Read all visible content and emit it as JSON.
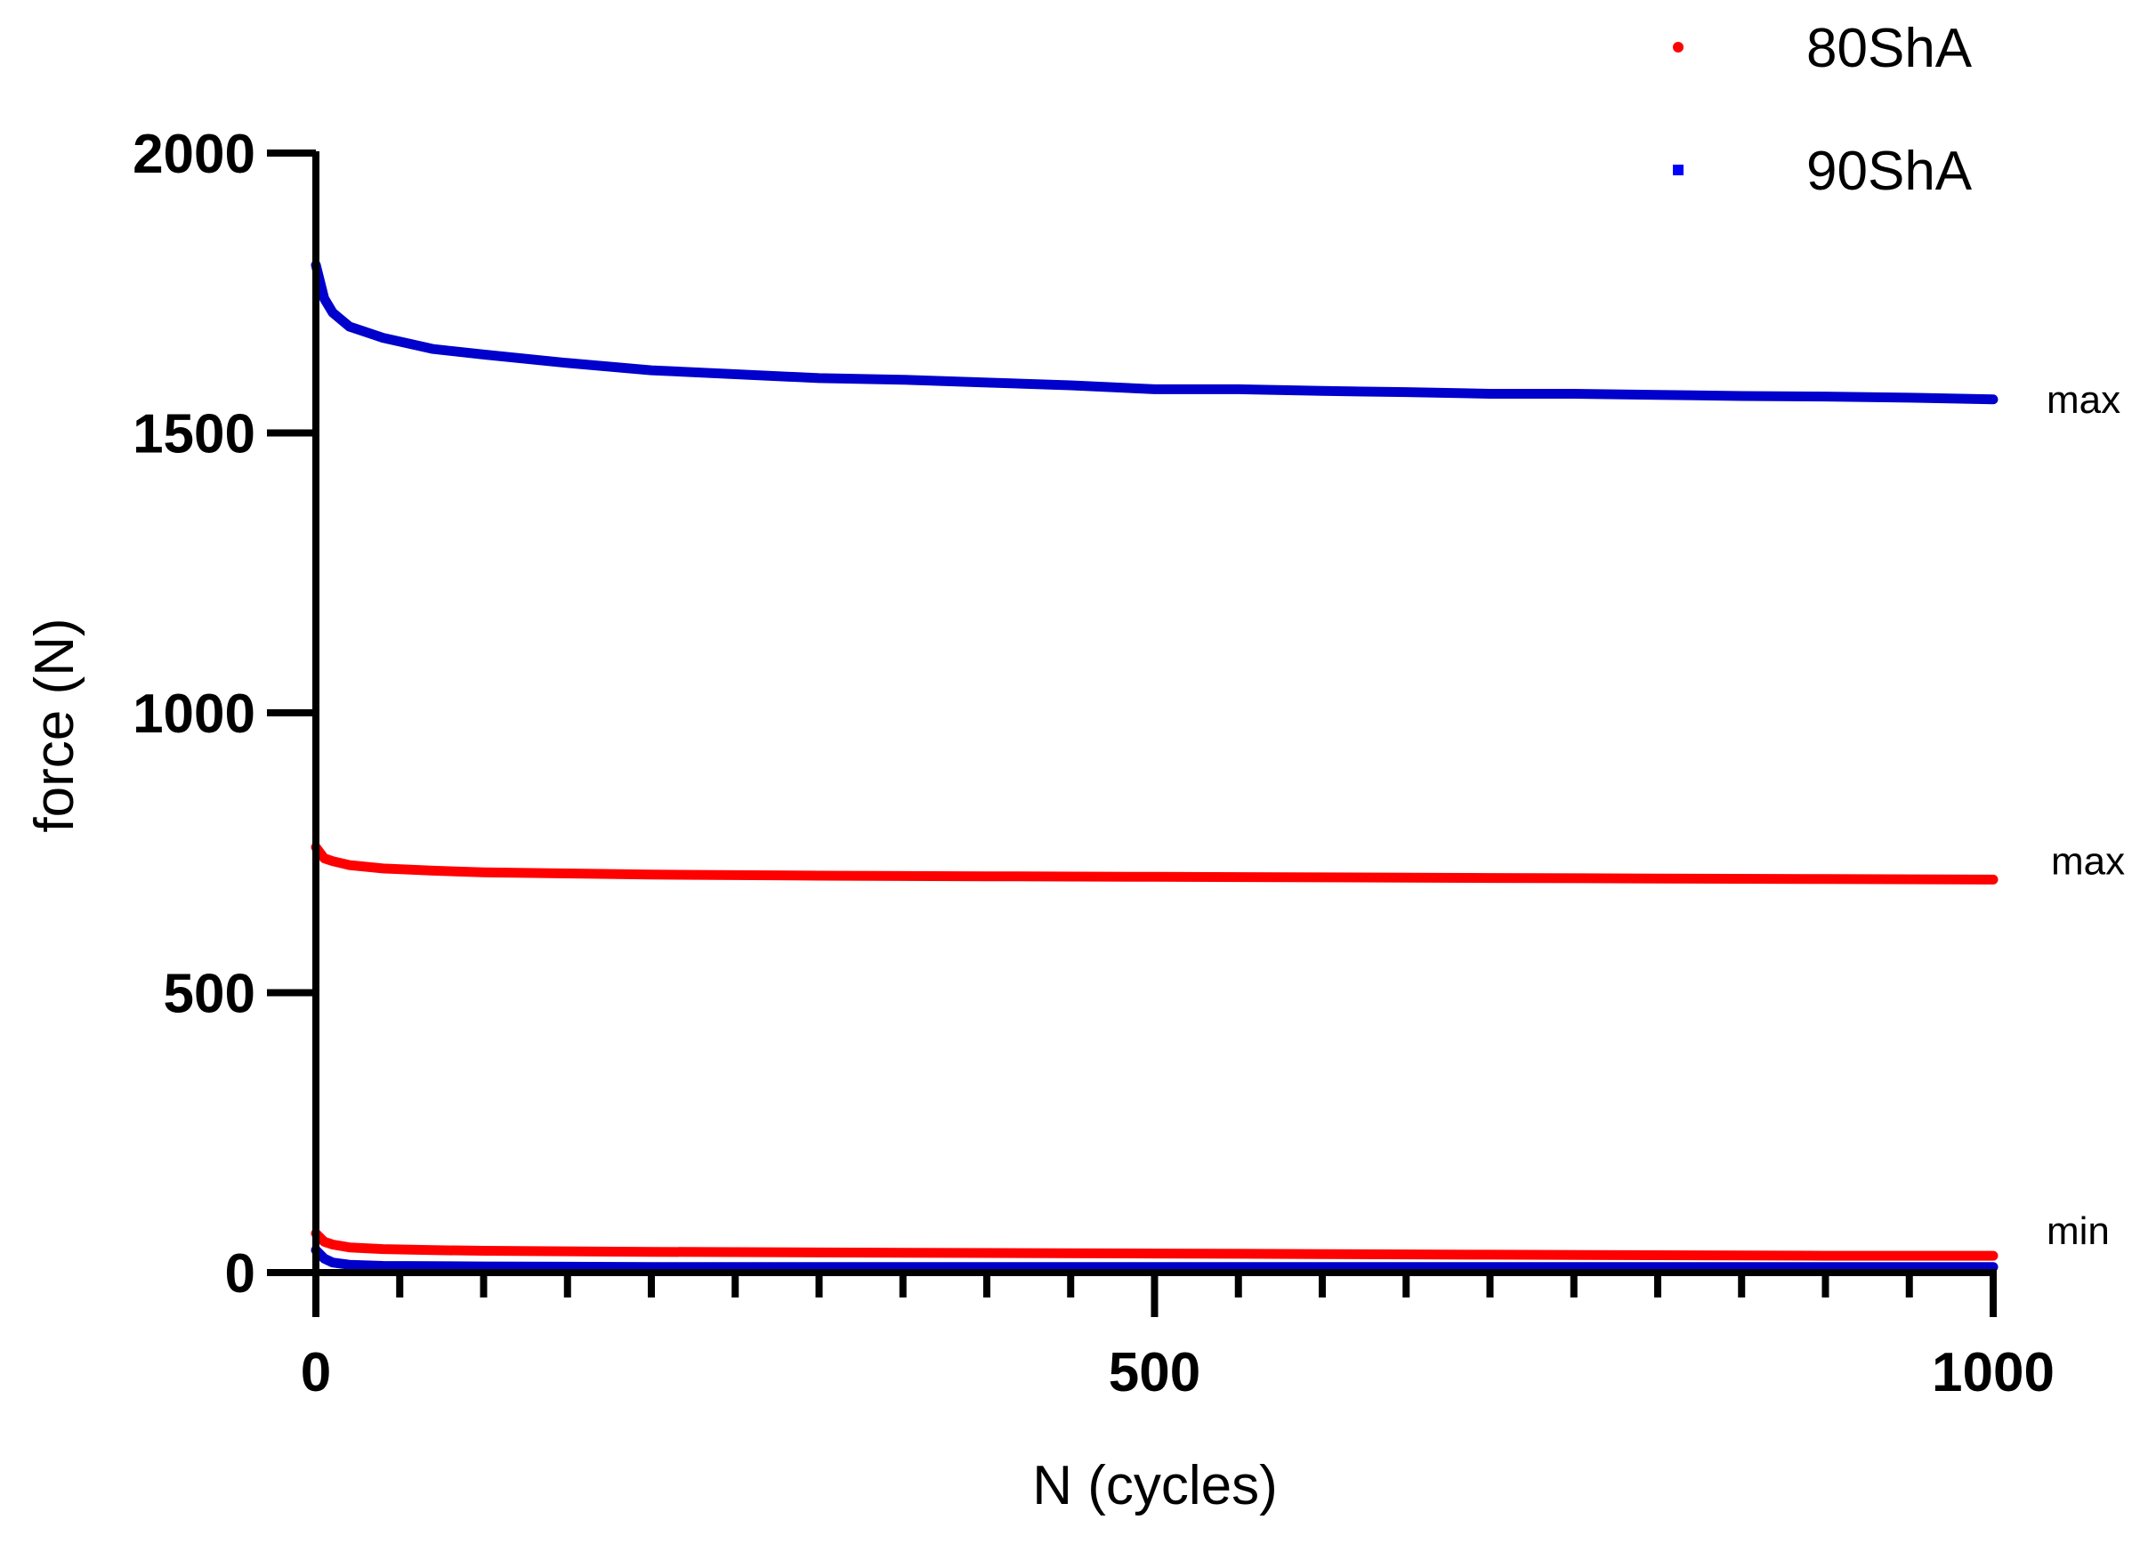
{
  "chart_data": {
    "type": "line",
    "title": "",
    "xlabel": "N (cycles)",
    "ylabel": "force (N)",
    "xlim": [
      0,
      1000
    ],
    "ylim": [
      0,
      2000
    ],
    "x_ticks": [
      0,
      500,
      1000
    ],
    "y_ticks": [
      0,
      500,
      1000,
      1500,
      2000
    ],
    "x_minor_step": 50,
    "grid": false,
    "legend": {
      "placement": "top-right",
      "entries": [
        {
          "label": "80ShA",
          "color": "#ff0000",
          "marker": "circle"
        },
        {
          "label": "90ShA",
          "color": "#0000ff",
          "marker": "square"
        }
      ]
    },
    "series": [
      {
        "legend": "90ShA",
        "level": "max",
        "color": "#0000cc",
        "x": [
          0,
          5,
          10,
          20,
          40,
          70,
          100,
          150,
          200,
          250,
          300,
          350,
          400,
          450,
          500,
          550,
          600,
          650,
          700,
          750,
          800,
          850,
          900,
          950,
          1000
        ],
        "y": [
          1800,
          1740,
          1715,
          1690,
          1670,
          1650,
          1640,
          1625,
          1612,
          1605,
          1598,
          1595,
          1590,
          1585,
          1578,
          1578,
          1575,
          1573,
          1570,
          1570,
          1568,
          1566,
          1565,
          1563,
          1560
        ]
      },
      {
        "legend": "80ShA",
        "level": "max",
        "color": "#ff0000",
        "x": [
          0,
          5,
          10,
          20,
          40,
          70,
          100,
          150,
          200,
          300,
          400,
          500,
          600,
          700,
          800,
          900,
          1000
        ],
        "y": [
          760,
          740,
          735,
          728,
          722,
          718,
          715,
          713,
          711,
          709,
          708,
          707,
          706,
          705,
          704,
          703,
          702
        ]
      },
      {
        "legend": "80ShA",
        "level": "min",
        "color": "#ff0000",
        "x": [
          0,
          5,
          10,
          20,
          40,
          70,
          100,
          200,
          300,
          400,
          500,
          600,
          700,
          800,
          900,
          1000
        ],
        "y": [
          70,
          55,
          50,
          45,
          42,
          40,
          39,
          37,
          36,
          35,
          34,
          33,
          32,
          31,
          30,
          30
        ]
      },
      {
        "legend": "90ShA",
        "level": "min",
        "color": "#0000cc",
        "x": [
          0,
          5,
          10,
          20,
          40,
          100,
          200,
          400,
          600,
          800,
          1000
        ],
        "y": [
          40,
          25,
          18,
          14,
          12,
          11,
          10,
          10,
          10,
          10,
          10
        ]
      }
    ],
    "annotations": [
      {
        "text": "max",
        "x": 1000,
        "y": 1560
      },
      {
        "text": "max",
        "x": 1000,
        "y": 735
      },
      {
        "text": "min",
        "x": 1000,
        "y": 75
      }
    ]
  }
}
